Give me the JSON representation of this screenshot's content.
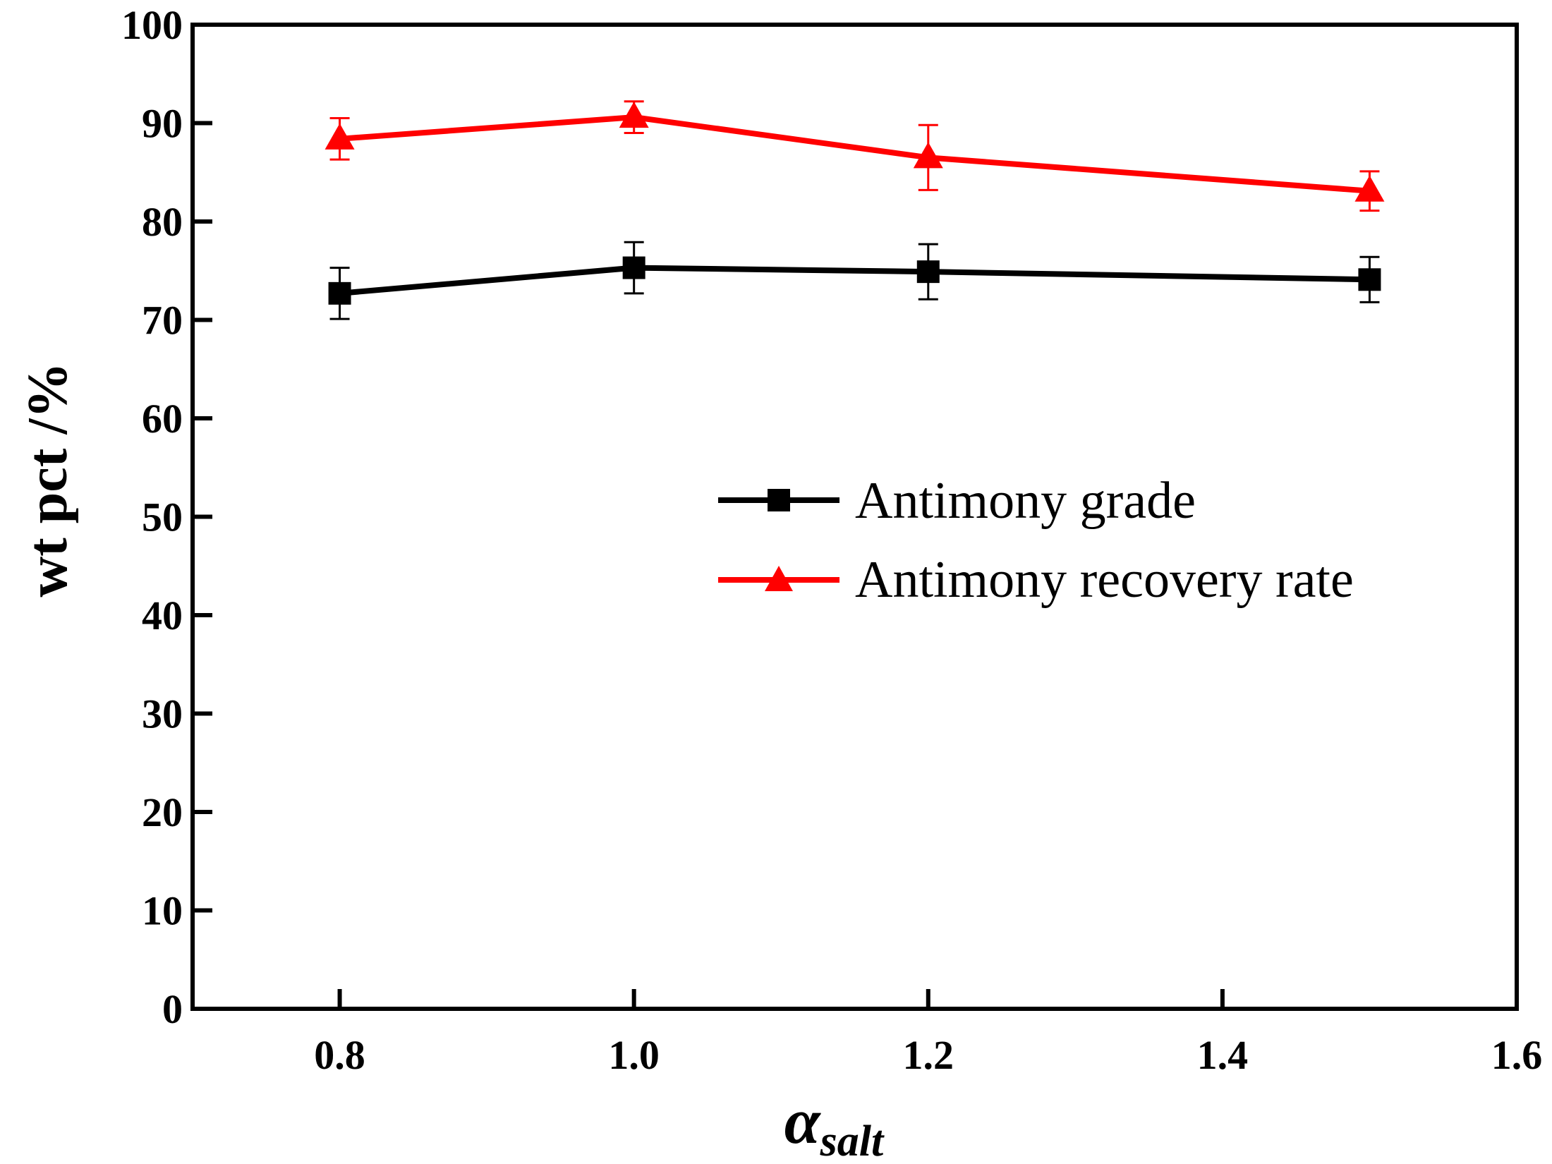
{
  "chart_data": {
    "type": "line",
    "xlabel_main": "α",
    "xlabel_sub": "salt",
    "ylabel": "wt pct /%",
    "xlim": [
      0.7,
      1.6
    ],
    "ylim": [
      0,
      100
    ],
    "xticks": [
      "0.8",
      "1.0",
      "1.2",
      "1.4",
      "1.6"
    ],
    "xtick_values": [
      0.8,
      1.0,
      1.2,
      1.4,
      1.6
    ],
    "yticks": [
      "0",
      "10",
      "20",
      "30",
      "40",
      "50",
      "60",
      "70",
      "80",
      "90",
      "100"
    ],
    "ytick_values": [
      0,
      10,
      20,
      30,
      40,
      50,
      60,
      70,
      80,
      90,
      100
    ],
    "legend_position": "center-right",
    "grid": false,
    "series": [
      {
        "name": "Antimony grade",
        "color": "#000000",
        "marker": "square",
        "x": [
          0.8,
          1.0,
          1.2,
          1.5
        ],
        "y": [
          72.7,
          75.3,
          74.9,
          74.1
        ],
        "err": [
          2.6,
          2.6,
          2.8,
          2.3
        ]
      },
      {
        "name": "Antimony recovery rate",
        "color": "#ff0000",
        "marker": "triangle",
        "x": [
          0.8,
          1.0,
          1.2,
          1.5
        ],
        "y": [
          88.4,
          90.6,
          86.5,
          83.1
        ],
        "err": [
          2.1,
          1.6,
          3.3,
          2.0
        ]
      }
    ]
  }
}
